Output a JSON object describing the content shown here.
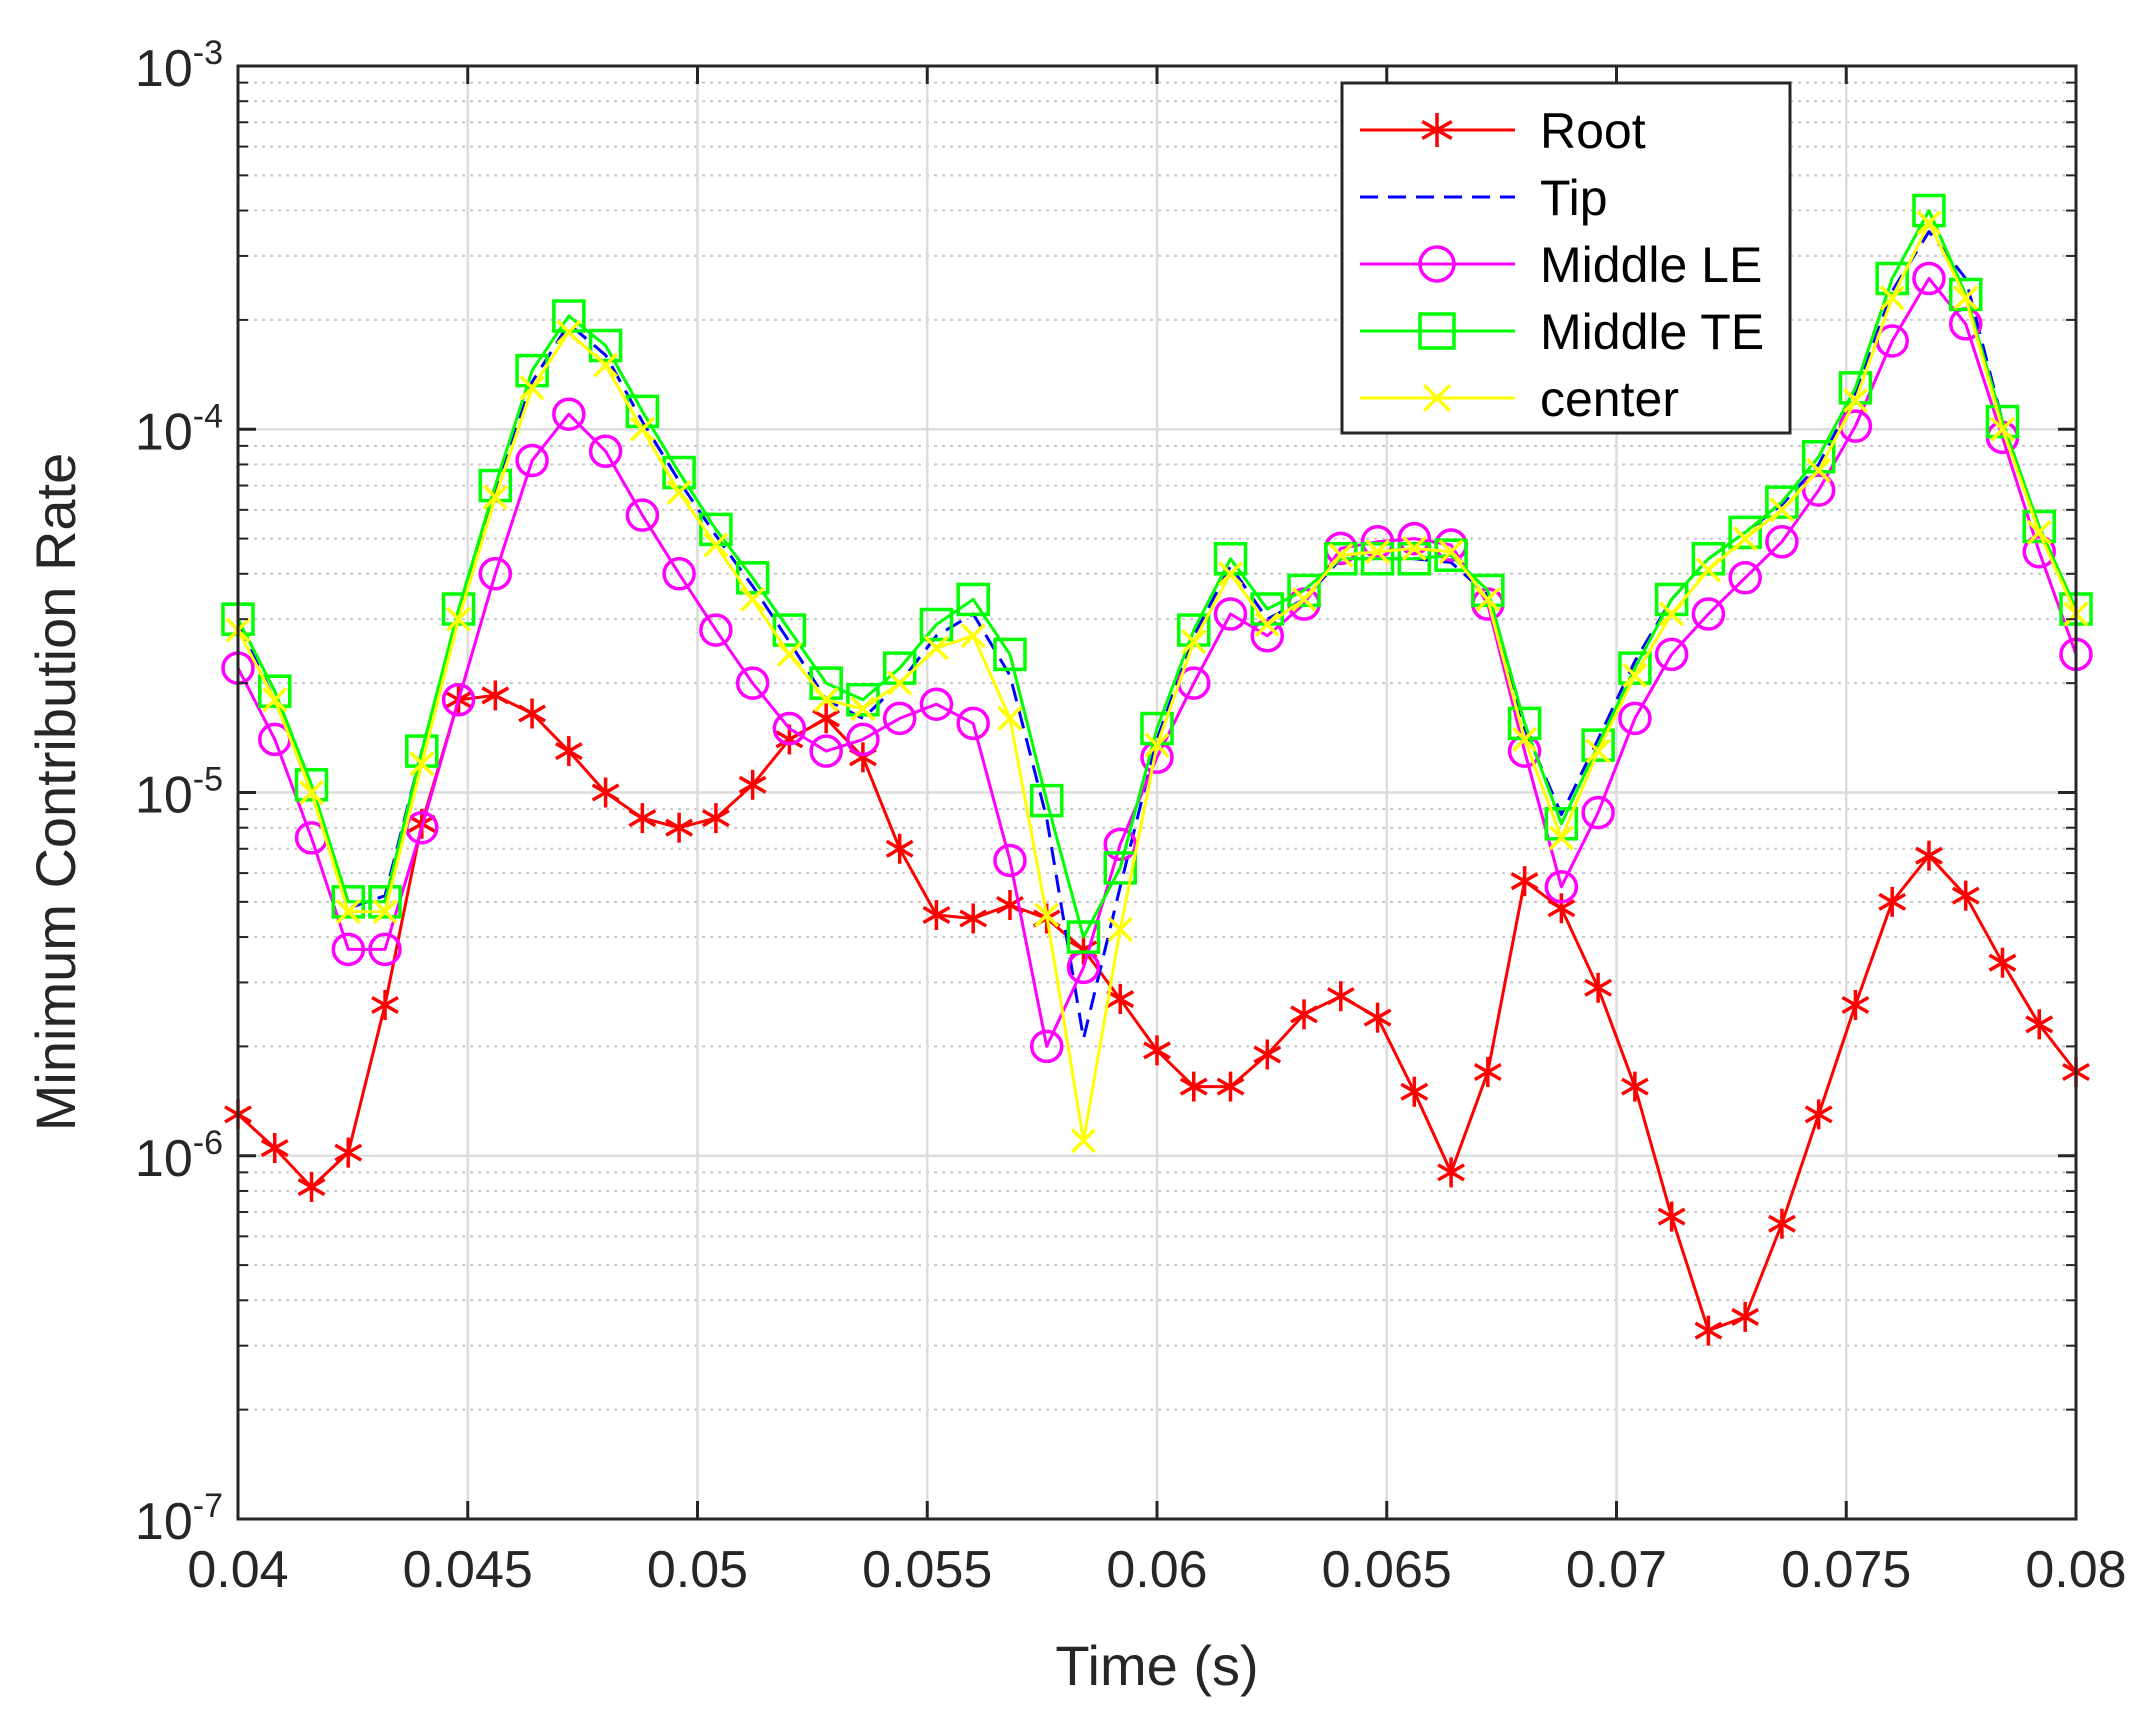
{
  "chart_data": {
    "type": "line",
    "xlabel": "Time (s)",
    "ylabel": "Minimum Contribution Rate",
    "xlim": [
      0.04,
      0.08
    ],
    "ylim": [
      1e-07,
      0.001
    ],
    "yscale": "log",
    "grid": true,
    "minor_grid": true,
    "legend_position": "top-right",
    "x_ticks": [
      0.04,
      0.045,
      0.05,
      0.055,
      0.06,
      0.065,
      0.07,
      0.075,
      0.08
    ],
    "x_tick_labels": [
      "0.04",
      "0.045",
      "0.05",
      "0.055",
      "0.06",
      "0.065",
      "0.07",
      "0.075",
      "0.08"
    ],
    "y_ticks": [
      1e-07,
      1e-06,
      1e-05,
      0.0001,
      0.001
    ],
    "y_tick_labels": [
      {
        "base": "10",
        "exp": "-7"
      },
      {
        "base": "10",
        "exp": "-6"
      },
      {
        "base": "10",
        "exp": "-5"
      },
      {
        "base": "10",
        "exp": "-4"
      },
      {
        "base": "10",
        "exp": "-3"
      }
    ],
    "x": [
      0.04,
      0.0408,
      0.0416,
      0.0424,
      0.0432,
      0.044,
      0.0448,
      0.0456,
      0.0464,
      0.0472,
      0.048,
      0.0488,
      0.0496,
      0.0504,
      0.0512,
      0.052,
      0.0528,
      0.0536,
      0.0544,
      0.0552,
      0.056,
      0.0568,
      0.0576,
      0.0584,
      0.0592,
      0.06,
      0.0608,
      0.0616,
      0.0624,
      0.0632,
      0.064,
      0.0648,
      0.0656,
      0.0664,
      0.0672,
      0.068,
      0.0688,
      0.0696,
      0.0704,
      0.0712,
      0.072,
      0.0728,
      0.0736,
      0.0744,
      0.0752,
      0.076,
      0.0768,
      0.0776,
      0.0784,
      0.0792,
      0.08
    ],
    "series": [
      {
        "name": "Root",
        "color": "#ff0000",
        "line_style": "solid",
        "marker": "asterisk",
        "values": [
          1.3e-06,
          1.05e-06,
          8.2e-07,
          1.02e-06,
          2.6e-06,
          8.2e-06,
          1.8e-05,
          1.85e-05,
          1.65e-05,
          1.3e-05,
          1e-05,
          8.5e-06,
          8e-06,
          8.5e-06,
          1.05e-05,
          1.4e-05,
          1.6e-05,
          1.25e-05,
          7e-06,
          4.6e-06,
          4.5e-06,
          4.9e-06,
          4.5e-06,
          3.7e-06,
          2.7e-06,
          1.95e-06,
          1.55e-06,
          1.55e-06,
          1.9e-06,
          2.45e-06,
          2.75e-06,
          2.4e-06,
          1.5e-06,
          9e-07,
          1.7e-06,
          5.7e-06,
          4.8e-06,
          2.9e-06,
          1.55e-06,
          6.8e-07,
          3.3e-07,
          3.6e-07,
          6.5e-07,
          1.3e-06,
          2.6e-06,
          5e-06,
          6.7e-06,
          5.2e-06,
          3.4e-06,
          2.3e-06,
          1.7e-06
        ]
      },
      {
        "name": "Tip",
        "color": "#0000ff",
        "line_style": "dashed",
        "marker": "none",
        "values": [
          2.9e-05,
          1.8e-05,
          1e-05,
          4.8e-06,
          5.2e-06,
          1.3e-05,
          3.1e-05,
          6.8e-05,
          0.000135,
          0.000195,
          0.00016,
          0.000105,
          7.2e-05,
          5.1e-05,
          3.7e-05,
          2.6e-05,
          1.8e-05,
          1.6e-05,
          2e-05,
          2.7e-05,
          3.1e-05,
          2.1e-05,
          8.5e-06,
          2.1e-06,
          5.5e-06,
          1.4e-05,
          2.7e-05,
          4.2e-05,
          3e-05,
          3.4e-05,
          4.4e-05,
          4.4e-05,
          4.4e-05,
          4.3e-05,
          3.5e-05,
          1.5e-05,
          8.7e-06,
          1.4e-05,
          2.3e-05,
          3.4e-05,
          4.4e-05,
          5.2e-05,
          6.2e-05,
          8e-05,
          0.000125,
          0.00024,
          0.00035,
          0.00026,
          0.000105,
          5.3e-05,
          3.2e-05
        ]
      },
      {
        "name": "Middle LE",
        "color": "#ff00ff",
        "line_style": "solid",
        "marker": "circle",
        "values": [
          2.2e-05,
          1.4e-05,
          7.5e-06,
          3.7e-06,
          3.7e-06,
          8e-06,
          1.8e-05,
          4e-05,
          8.2e-05,
          0.00011,
          8.7e-05,
          5.8e-05,
          4e-05,
          2.8e-05,
          2e-05,
          1.5e-05,
          1.3e-05,
          1.4e-05,
          1.6e-05,
          1.75e-05,
          1.55e-05,
          6.5e-06,
          2e-06,
          3.3e-06,
          7.2e-06,
          1.25e-05,
          2e-05,
          3.1e-05,
          2.7e-05,
          3.3e-05,
          4.7e-05,
          4.9e-05,
          5e-05,
          4.8e-05,
          3.3e-05,
          1.3e-05,
          5.5e-06,
          8.8e-06,
          1.6e-05,
          2.4e-05,
          3.1e-05,
          3.9e-05,
          4.9e-05,
          6.8e-05,
          0.000102,
          0.000175,
          0.00026,
          0.000195,
          9.5e-05,
          4.6e-05,
          2.4e-05
        ]
      },
      {
        "name": "Middle TE",
        "color": "#00ff00",
        "line_style": "solid",
        "marker": "square",
        "values": [
          3e-05,
          1.9e-05,
          1.05e-05,
          5e-06,
          5e-06,
          1.3e-05,
          3.2e-05,
          7e-05,
          0.000145,
          0.000205,
          0.00017,
          0.000112,
          7.6e-05,
          5.3e-05,
          3.9e-05,
          2.8e-05,
          2e-05,
          1.8e-05,
          2.2e-05,
          2.9e-05,
          3.4e-05,
          2.4e-05,
          9.5e-06,
          4e-06,
          6.2e-06,
          1.5e-05,
          2.8e-05,
          4.4e-05,
          3.2e-05,
          3.6e-05,
          4.4e-05,
          4.4e-05,
          4.4e-05,
          4.5e-05,
          3.6e-05,
          1.55e-05,
          8.2e-06,
          1.35e-05,
          2.2e-05,
          3.4e-05,
          4.4e-05,
          5.2e-05,
          6.3e-05,
          8.4e-05,
          0.00013,
          0.00026,
          0.0004,
          0.000235,
          0.000105,
          5.4e-05,
          3.2e-05
        ]
      },
      {
        "name": "center",
        "color": "#ffff00",
        "line_style": "solid",
        "marker": "x",
        "values": [
          2.8e-05,
          1.8e-05,
          1e-05,
          4.7e-06,
          4.7e-06,
          1.2e-05,
          3e-05,
          6.5e-05,
          0.00013,
          0.000185,
          0.00015,
          0.0001,
          6.7e-05,
          4.8e-05,
          3.4e-05,
          2.4e-05,
          1.8e-05,
          1.7e-05,
          2e-05,
          2.5e-05,
          2.7e-05,
          1.6e-05,
          4.6e-06,
          1.1e-06,
          4.2e-06,
          1.35e-05,
          2.6e-05,
          4e-05,
          2.9e-05,
          3.4e-05,
          4.5e-05,
          4.6e-05,
          4.7e-05,
          4.6e-05,
          3.4e-05,
          1.4e-05,
          7.5e-06,
          1.3e-05,
          2.1e-05,
          3.1e-05,
          4.1e-05,
          5e-05,
          6e-05,
          7.7e-05,
          0.00012,
          0.00023,
          0.00037,
          0.00023,
          0.0001,
          5.2e-05,
          3.1e-05
        ]
      }
    ]
  }
}
